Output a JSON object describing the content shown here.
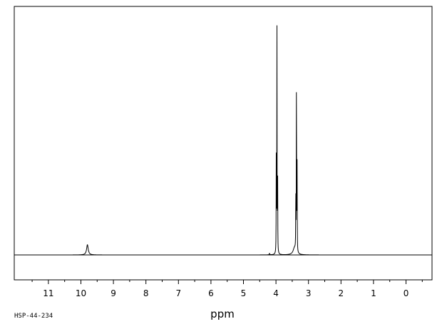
{
  "chart_data": {
    "type": "line",
    "xlabel": "ppm",
    "ylabel": "",
    "title": "",
    "xlim": [
      12.05,
      -0.8
    ],
    "x_reversed": true,
    "ylim": [
      0,
      1
    ],
    "grid": false,
    "legend": "none",
    "ticks": [
      {
        "value": 11,
        "label": "11"
      },
      {
        "value": 10,
        "label": "10"
      },
      {
        "value": 9,
        "label": "9"
      },
      {
        "value": 8,
        "label": "8"
      },
      {
        "value": 7,
        "label": "7"
      },
      {
        "value": 6,
        "label": "6"
      },
      {
        "value": 5,
        "label": "5"
      },
      {
        "value": 4,
        "label": "4"
      },
      {
        "value": 3,
        "label": "3"
      },
      {
        "value": 2,
        "label": "2"
      },
      {
        "value": 1,
        "label": "1"
      },
      {
        "value": 0,
        "label": "0"
      }
    ],
    "peaks": [
      {
        "ppm": 9.8,
        "height": 0.045,
        "width": 0.03
      },
      {
        "ppm": 3.97,
        "height": 1.0,
        "width": 0.004
      },
      {
        "ppm": 3.99,
        "height": 0.46,
        "width": 0.004
      },
      {
        "ppm": 3.95,
        "height": 0.44,
        "width": 0.004
      },
      {
        "ppm": 3.37,
        "height": 0.83,
        "width": 0.004
      },
      {
        "ppm": 3.35,
        "height": 0.38,
        "width": 0.004
      },
      {
        "ppm": 3.39,
        "height": 0.25,
        "width": 0.004
      },
      {
        "ppm": 3.43,
        "height": 0.03,
        "width": 0.05
      },
      {
        "ppm": 4.2,
        "height": 0.006,
        "width": 0.01
      }
    ],
    "sample_code": "HSP-44-234",
    "line_color": "#000000"
  }
}
